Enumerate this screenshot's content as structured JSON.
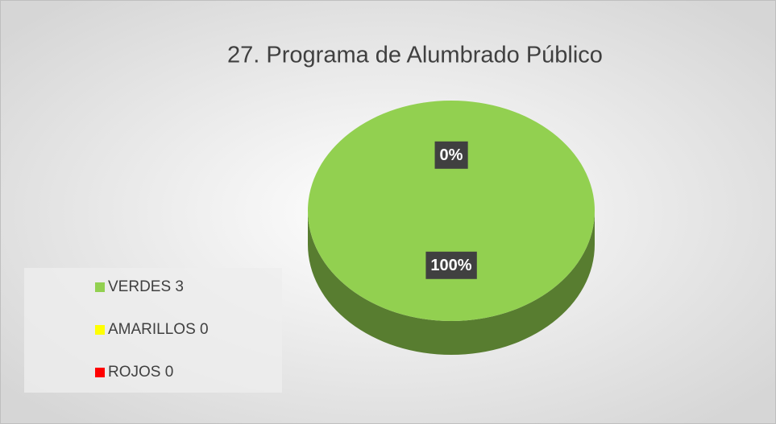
{
  "chart_data": {
    "type": "pie",
    "title": "27. Programa de Alumbrado Público",
    "categories": [
      "VERDES 3",
      "AMARILLOS 0",
      "ROJOS 0"
    ],
    "values": [
      100,
      0,
      0
    ],
    "value_labels": [
      "100%",
      "0%",
      null
    ],
    "colors": [
      "#92d050",
      "#ffff00",
      "#ff0000"
    ]
  }
}
